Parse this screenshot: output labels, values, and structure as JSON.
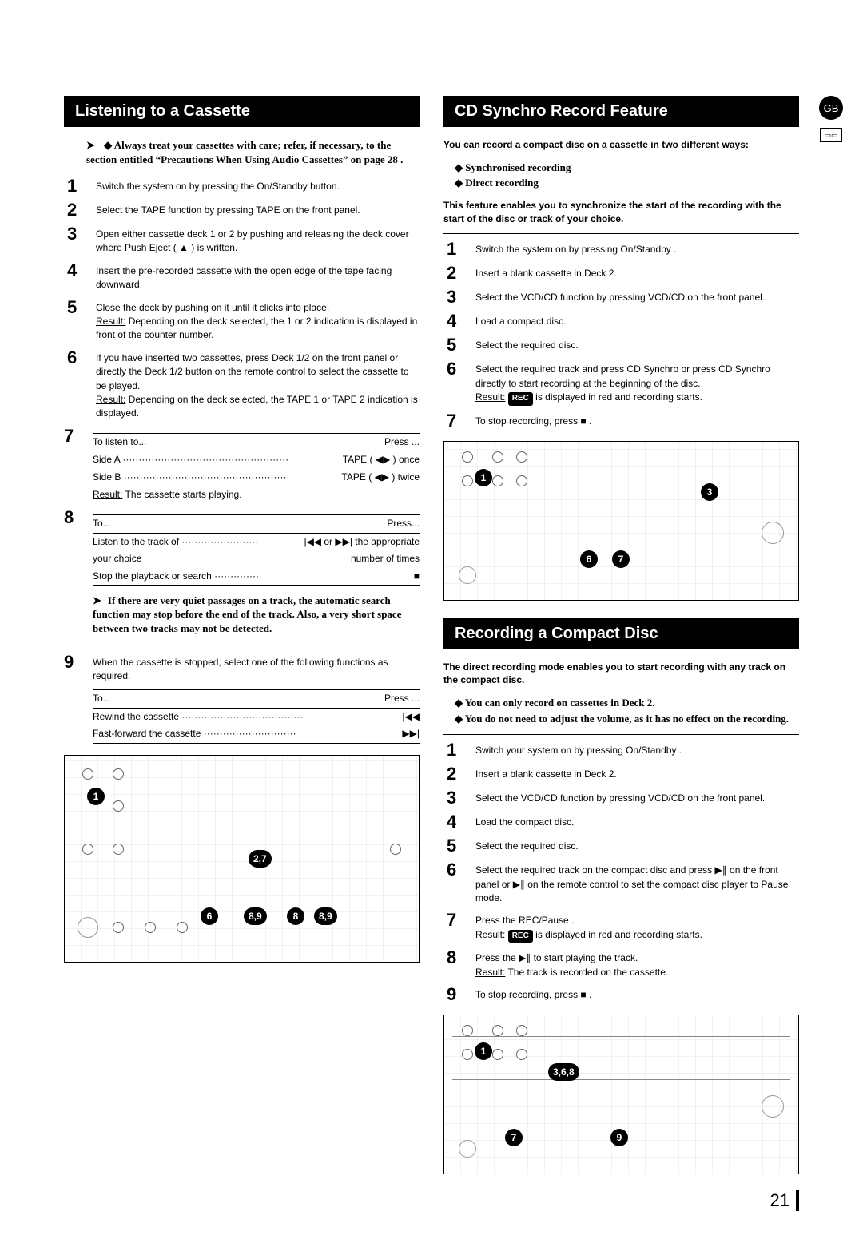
{
  "page_number": "21",
  "region_badge": "GB",
  "left": {
    "title": "Listening to a Cassette",
    "note": "Always treat your cassettes with care; refer, if necessary, to the section entitled “Precautions When Using Audio Cassettes” on page 28 .",
    "steps": [
      {
        "n": "1",
        "text": "Switch the system on by pressing the On/Standby  button."
      },
      {
        "n": "2",
        "text": "Select the TAPE function by pressing TAPE on the front panel."
      },
      {
        "n": "3",
        "text": "Open either cassette deck 1 or 2 by pushing and releasing the deck cover where Push Eject  ( ▲ ) is written."
      },
      {
        "n": "4",
        "text": "Insert the pre-recorded cassette with the open edge of the tape facing downward."
      },
      {
        "n": "5",
        "text": "Close the deck by pushing on it until it clicks into place.",
        "result": "Depending on the deck selected, the 1 or 2 indication is displayed in front of the counter number."
      },
      {
        "n": "6",
        "text": "If you have inserted two cassettes, press Deck 1/2 on the front panel or directly the Deck 1/2 button on the remote control to select the cassette to be played.",
        "result": "Depending on the deck selected, the TAPE 1 or TAPE 2 indication is displayed."
      }
    ],
    "step7": {
      "n": "7",
      "hdr_left": "To listen to...",
      "hdr_right": "Press ...",
      "rows": [
        {
          "l": "Side A ····················································",
          "r": "TAPE ( ◀▶ ) once"
        },
        {
          "l": "Side B ····················································",
          "r": "TAPE ( ◀▶ ) twice"
        }
      ],
      "result": "The cassette starts playing."
    },
    "step8": {
      "n": "8",
      "hdr_left": "To...",
      "hdr_right": "Press...",
      "rows": [
        {
          "l": "Listen to the track of ························",
          "r": "|◀◀ or ▶▶| the appropriate"
        },
        {
          "l": "your choice",
          "r": "number of times"
        },
        {
          "l": "Stop the playback or search ··············",
          "r": "■"
        }
      ],
      "note": "If there are very quiet passages on a track, the automatic search function may stop before the end of the track. Also, a very short space between two tracks may not be detected."
    },
    "step9": {
      "n": "9",
      "text": "When the cassette is stopped, select one of the following functions as required.",
      "hdr_left": "To...",
      "hdr_right": "Press ...",
      "rows": [
        {
          "l": "Rewind the cassette ······································",
          "r": "|◀◀"
        },
        {
          "l": "Fast-forward the cassette ·····························",
          "r": "▶▶|"
        }
      ]
    },
    "diagram_callouts": [
      {
        "label": "1",
        "style": "top:40px;left:28px"
      },
      {
        "label": "2,7",
        "style": "top:118px;left:230px",
        "wide": true
      },
      {
        "label": "6",
        "style": "bottom:46px;left:170px"
      },
      {
        "label": "8,9",
        "style": "bottom:46px;left:224px",
        "wide": true
      },
      {
        "label": "8",
        "style": "bottom:46px;left:278px"
      },
      {
        "label": "8,9",
        "style": "bottom:46px;left:312px",
        "wide": true
      }
    ]
  },
  "right_a": {
    "title": "CD Synchro Record Feature",
    "intro": "You can record a compact disc on a cassette in two different ways:",
    "bullets": [
      "Synchronised recording",
      "Direct recording"
    ],
    "feature_text": "This feature enables you to synchronize the start of the recording with the start of the disc or track of your choice.",
    "steps": [
      {
        "n": "1",
        "text": "Switch the system on by pressing On/Standby ."
      },
      {
        "n": "2",
        "text": "Insert a blank cassette in Deck 2."
      },
      {
        "n": "3",
        "text": "Select the VCD/CD function by pressing VCD/CD on the front panel."
      },
      {
        "n": "4",
        "text": "Load a compact disc."
      },
      {
        "n": "5",
        "text": "Select the required disc."
      },
      {
        "n": "6",
        "text": "Select the required track and press CD Synchro  or press CD Synchro  directly to start recording at the beginning of the disc.",
        "result_badge": "REC",
        "result_suffix": "is displayed in red and recording starts."
      },
      {
        "n": "7",
        "text": "To stop recording, press ■ ."
      }
    ],
    "diagram_callouts": [
      {
        "label": "1",
        "style": "top:34px;left:38px"
      },
      {
        "label": "3",
        "style": "top:52px;right:100px"
      },
      {
        "label": "6",
        "style": "bottom:40px;left:170px"
      },
      {
        "label": "7",
        "style": "bottom:40px;left:210px"
      }
    ]
  },
  "right_b": {
    "title": "Recording a Compact Disc",
    "intro": "The direct recording mode enables you to start recording with any track on the compact disc.",
    "bullets": [
      "You can only record on cassettes in Deck 2.",
      "You do not need to adjust the volume, as it has no effect on the recording."
    ],
    "steps": [
      {
        "n": "1",
        "text": "Switch your system on by pressing On/Standby ."
      },
      {
        "n": "2",
        "text": "Insert a blank cassette in Deck 2."
      },
      {
        "n": "3",
        "text": "Select the VCD/CD function by pressing VCD/CD on the front panel."
      },
      {
        "n": "4",
        "text": "Load the compact disc."
      },
      {
        "n": "5",
        "text": "Select the required disc."
      },
      {
        "n": "6",
        "text": "Select the required track on the compact disc and press ▶∥ on the front panel or ▶∥ on the remote control to set the compact disc player to Pause mode."
      },
      {
        "n": "7",
        "text": "Press the REC/Pause .",
        "result_badge": "REC",
        "result_suffix": "is displayed in red and recording starts."
      },
      {
        "n": "8",
        "text": "Press the ▶∥ to start playing the track.",
        "result": "The track is recorded on the cassette."
      },
      {
        "n": "9",
        "text": "To stop recording, press ■ ."
      }
    ],
    "diagram_callouts": [
      {
        "label": "1",
        "style": "top:34px;left:38px"
      },
      {
        "label": "3,6,8",
        "style": "top:60px;left:130px",
        "wide": true
      },
      {
        "label": "7",
        "style": "bottom:34px;left:76px"
      },
      {
        "label": "9",
        "style": "bottom:34px;left:208px"
      }
    ]
  }
}
